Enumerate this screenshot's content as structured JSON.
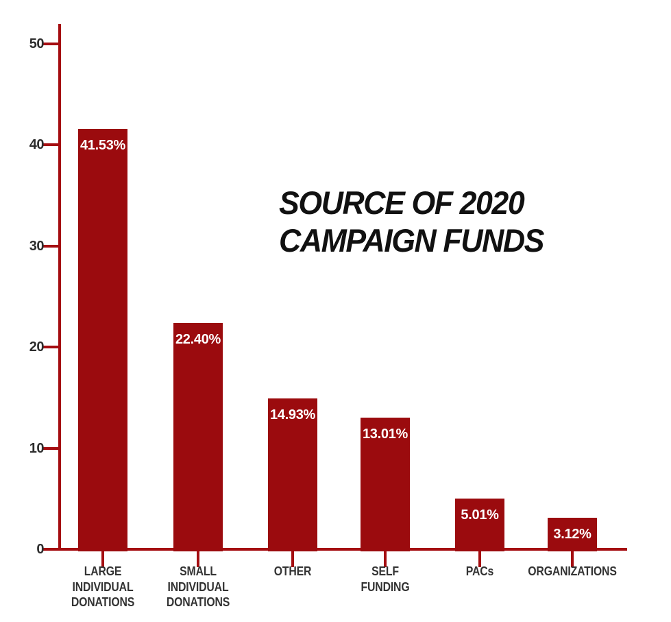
{
  "chart_data": {
    "type": "bar",
    "title": "SOURCE OF 2020 CAMPAIGN FUNDS",
    "title_lines": [
      "SOURCE OF 2020",
      "CAMPAIGN FUNDS"
    ],
    "categories": [
      "LARGE INDIVIDUAL DONATIONS",
      "SMALL INDIVIDUAL DONATIONS",
      "OTHER",
      "SELF FUNDING",
      "PACs",
      "ORGANIZATIONS"
    ],
    "categories_lines": [
      [
        "LARGE",
        "INDIVIDUAL",
        "DONATIONS"
      ],
      [
        "SMALL",
        "INDIVIDUAL",
        "DONATIONS"
      ],
      [
        "OTHER"
      ],
      [
        "SELF",
        "FUNDING"
      ],
      [
        "PACs"
      ],
      [
        "ORGANIZATIONS"
      ]
    ],
    "values": [
      41.53,
      22.4,
      14.93,
      13.01,
      5.01,
      3.12
    ],
    "value_labels": [
      "41.53%",
      "22.40%",
      "14.93%",
      "13.01%",
      "5.01%",
      "3.12%"
    ],
    "yticks": [
      0,
      10,
      20,
      30,
      40,
      50
    ],
    "ylim": [
      0,
      52
    ],
    "xlabel": "",
    "ylabel": "",
    "grid": false,
    "legend": "none",
    "colors": {
      "bar": "#9b0b0e",
      "axis": "#a50d11",
      "value_label": "#ffffff",
      "tick_label": "#2d2d2d",
      "category_label": "#333333",
      "title": "#111111",
      "background": "#ffffff"
    }
  }
}
